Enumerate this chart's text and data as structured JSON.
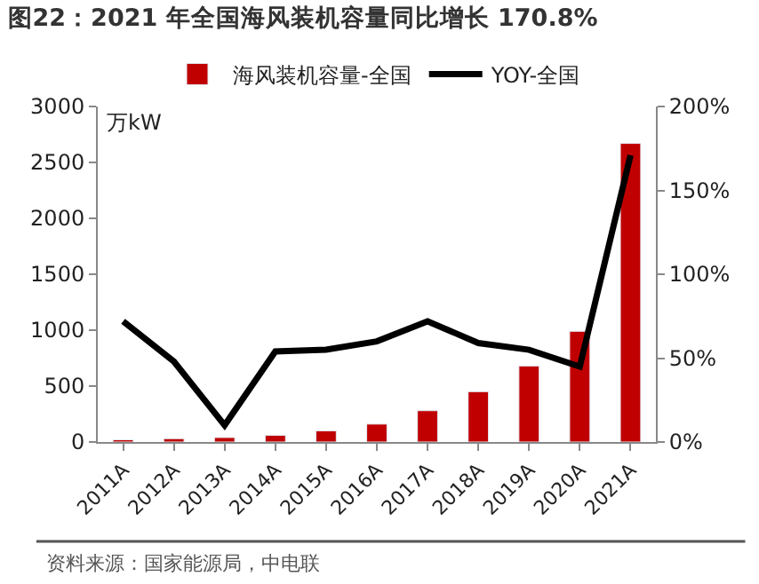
{
  "chart_data": {
    "type": "bar",
    "title": "图22：2021 年全国海风装机容量同比增长 170.8%",
    "ylabel": "万kW",
    "categories": [
      "2011A",
      "2012A",
      "2013A",
      "2014A",
      "2015A",
      "2016A",
      "2017A",
      "2018A",
      "2019A",
      "2020A",
      "2021A"
    ],
    "series": [
      {
        "name": "海风装机容量-全国",
        "color": "#c00000",
        "values": [
          20,
          30,
          40,
          60,
          100,
          160,
          280,
          450,
          680,
          990,
          2670
        ]
      },
      {
        "name": "YOY-全国",
        "color": "#000000",
        "type": "line",
        "axis": "y2",
        "values": [
          72,
          48,
          10,
          54,
          55,
          60,
          72,
          59,
          55,
          45,
          171
        ]
      }
    ],
    "ylim": [
      0,
      3000
    ],
    "yticks": [
      0,
      500,
      1000,
      1500,
      2000,
      2500,
      3000
    ],
    "y2lim": [
      0,
      200
    ],
    "y2ticks": [
      {
        "value": 0,
        "label": "0%"
      },
      {
        "value": 50,
        "label": "50%"
      },
      {
        "value": 100,
        "label": "100%"
      },
      {
        "value": 150,
        "label": "150%"
      },
      {
        "value": 200,
        "label": "200%"
      }
    ],
    "legend": "top",
    "marker": "none",
    "line_style": "solid",
    "annotations": [
      "资料来源：国家能源局，中电联"
    ]
  }
}
